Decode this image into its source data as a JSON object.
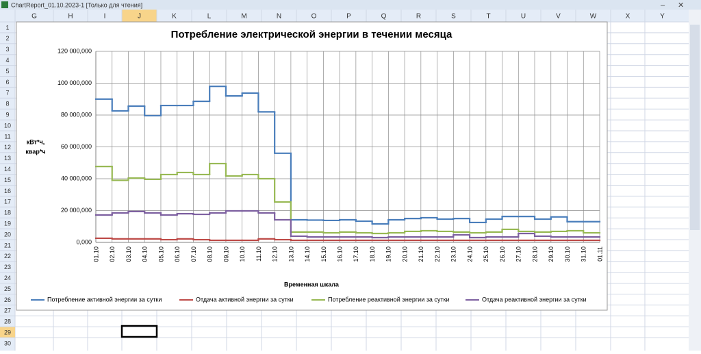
{
  "window": {
    "title": "ChartReport_01.10.2023-1  [Только для чтения]"
  },
  "sheet": {
    "columns": [
      "G",
      "H",
      "I",
      "J",
      "K",
      "L",
      "M",
      "N",
      "O",
      "P",
      "Q",
      "R",
      "S",
      "T",
      "U",
      "V",
      "W",
      "X",
      "Y"
    ],
    "rows": [
      1,
      2,
      3,
      4,
      5,
      6,
      7,
      8,
      9,
      10,
      11,
      12,
      13,
      14,
      15,
      16,
      17,
      18,
      19,
      20,
      21,
      22,
      23,
      24,
      25,
      26,
      27,
      28,
      29,
      30
    ]
  },
  "chart_data": {
    "type": "line",
    "step": true,
    "title": "Потребление электрической энергии в течении месяца",
    "x_label": "Временная шкала",
    "y_label": [
      "кВт*ч,",
      "квар*ч"
    ],
    "categories": [
      "01.10",
      "02.10",
      "03.10",
      "04.10",
      "05.10",
      "06.10",
      "07.10",
      "08.10",
      "09.10",
      "10.10",
      "11.10",
      "12.10",
      "13.10",
      "14.10",
      "15.10",
      "16.10",
      "17.10",
      "18.10",
      "19.10",
      "20.10",
      "21.10",
      "22.10",
      "23.10",
      "24.10",
      "25.10",
      "26.10",
      "27.10",
      "28.10",
      "29.10",
      "30.10",
      "31.10",
      "01.11"
    ],
    "ylim": [
      0,
      120000000
    ],
    "yticks": [
      {
        "value": 0,
        "label": "0,000"
      },
      {
        "value": 20000000,
        "label": "20 000,000"
      },
      {
        "value": 40000000,
        "label": "40 000,000"
      },
      {
        "value": 60000000,
        "label": "60 000,000"
      },
      {
        "value": 80000000,
        "label": "80 000,000"
      },
      {
        "value": 100000000,
        "label": "100 000,000"
      },
      {
        "value": 120000000,
        "label": "120 000,000"
      }
    ],
    "grid": true,
    "legend": "bottom",
    "series": [
      {
        "name": "Потребление активной энергии за сутки",
        "color": "#4a7ebb",
        "values": [
          90000000,
          82600000,
          85600000,
          79600000,
          86000000,
          86000000,
          88600000,
          98000000,
          92000000,
          93800000,
          82000000,
          56000000,
          14200000,
          14000000,
          13800000,
          14200000,
          13300000,
          11600000,
          14200000,
          15000000,
          15500000,
          14600000,
          15000000,
          12500000,
          14600000,
          16300000,
          16300000,
          14600000,
          16000000,
          13000000,
          13000000,
          null
        ]
      },
      {
        "name": "Отдача активной энергии за сутки",
        "color": "#be4b48",
        "values": [
          2600000,
          2200000,
          2200000,
          2200000,
          1700000,
          2200000,
          1700000,
          1300000,
          1300000,
          1300000,
          2200000,
          1700000,
          1300000,
          1300000,
          1300000,
          1300000,
          1300000,
          1300000,
          1300000,
          1300000,
          1300000,
          1300000,
          1300000,
          1300000,
          1300000,
          1300000,
          1300000,
          1300000,
          1300000,
          1300000,
          1300000,
          null
        ]
      },
      {
        "name": "Потребление реактивной энергии за сутки",
        "color": "#98b954",
        "values": [
          47700000,
          39000000,
          40400000,
          39600000,
          42600000,
          43900000,
          42600000,
          49500000,
          41700000,
          42600000,
          40000000,
          25400000,
          6500000,
          6500000,
          6000000,
          6500000,
          6000000,
          5600000,
          6000000,
          6900000,
          7300000,
          6900000,
          6500000,
          6000000,
          6500000,
          8200000,
          6900000,
          6500000,
          6900000,
          7300000,
          6000000,
          null
        ]
      },
      {
        "name": "Отдача реактивной энергии за сутки",
        "color": "#7d60a0",
        "values": [
          17200000,
          18500000,
          19400000,
          18500000,
          17200000,
          18000000,
          17600000,
          18500000,
          19800000,
          19800000,
          18500000,
          14200000,
          3900000,
          3400000,
          3400000,
          3400000,
          3400000,
          3000000,
          3400000,
          3400000,
          3400000,
          3400000,
          4700000,
          3000000,
          3400000,
          3400000,
          5600000,
          3900000,
          3400000,
          3400000,
          3400000,
          null
        ]
      }
    ]
  }
}
